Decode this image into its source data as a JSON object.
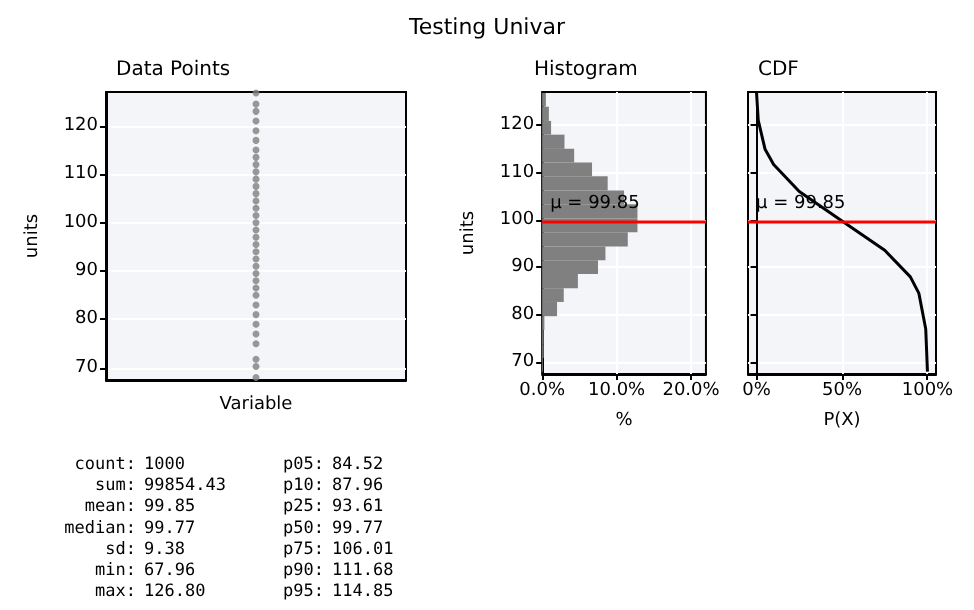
{
  "chart_data": [
    {
      "type": "other",
      "title": "Testing Univar"
    },
    {
      "type": "scatter",
      "title": "Data Points",
      "ylabel": "units",
      "categories": [
        "Variable"
      ],
      "ylim": [
        67.5,
        127
      ],
      "yticks": [
        70,
        80,
        90,
        100,
        110,
        120
      ],
      "grid": "y",
      "marker": "circle",
      "series": [
        {
          "color": "#808080",
          "x": [
            "Variable",
            "Variable",
            "Variable",
            "Variable",
            "Variable",
            "Variable",
            "Variable",
            "Variable",
            "Variable",
            "Variable",
            "Variable",
            "Variable",
            "Variable",
            "Variable",
            "Variable",
            "Variable",
            "Variable",
            "Variable",
            "Variable",
            "Variable",
            "Variable",
            "Variable",
            "Variable",
            "Variable",
            "Variable",
            "Variable",
            "Variable",
            "Variable",
            "Variable",
            "Variable",
            "Variable",
            "Variable",
            "Variable",
            "Variable",
            "Variable"
          ],
          "values": [
            68.0,
            70.3,
            71.8,
            75.0,
            77.0,
            79.0,
            81.0,
            83.0,
            85.0,
            86.5,
            88.0,
            89.5,
            91.0,
            92.5,
            94.0,
            95.5,
            97.0,
            98.5,
            100.0,
            101.5,
            103.0,
            104.5,
            106.0,
            107.5,
            109.0,
            110.5,
            112.0,
            113.5,
            115.0,
            117.0,
            119.0,
            121.0,
            123.0,
            124.5,
            126.8
          ]
        }
      ]
    },
    {
      "type": "histogram",
      "title": "Histogram",
      "ylabel": "units",
      "xlabel": "%",
      "orientation": "horizontal",
      "color": "#808080",
      "bins": [
        68.0,
        70.9,
        73.8,
        76.8,
        79.7,
        82.7,
        85.6,
        88.6,
        91.5,
        94.4,
        97.4,
        100.3,
        103.3,
        106.2,
        109.2,
        112.1,
        115.0,
        118.0,
        120.9,
        123.9,
        126.8
      ],
      "values": [
        0.1,
        0.2,
        0.2,
        0.3,
        2.0,
        2.9,
        4.8,
        7.5,
        8.5,
        11.5,
        12.8,
        12.8,
        11.0,
        8.8,
        6.7,
        4.3,
        3.0,
        1.2,
        0.9,
        0.5
      ],
      "xlim": [
        0,
        22
      ],
      "xticks": [
        {
          "value": 0,
          "label": "0.0%"
        },
        {
          "value": 10,
          "label": "10.0%"
        },
        {
          "value": 20,
          "label": "20.0%"
        }
      ],
      "ylim": [
        67.5,
        127
      ],
      "yticks": [
        70,
        80,
        90,
        100,
        110,
        120
      ],
      "grid": true,
      "ref_lines": [
        {
          "axis": "y",
          "value": 99.85,
          "label": "μ = 99.85",
          "color": "#ff0000"
        }
      ]
    },
    {
      "type": "line",
      "title": "CDF",
      "xlabel": "P(X)",
      "marker": "none",
      "tick_labels": "x",
      "series": [
        {
          "color": "#000000",
          "x": [
            0,
            1,
            5,
            10,
            25,
            50,
            75,
            90,
            95,
            99,
            100
          ],
          "values": [
            126.8,
            121,
            114.9,
            111.7,
            106.0,
            99.8,
            93.6,
            88.0,
            84.5,
            77,
            68.0
          ]
        }
      ],
      "xlim": [
        -5,
        105
      ],
      "xticks": [
        {
          "value": 0,
          "label": "0%"
        },
        {
          "value": 50,
          "label": "50%"
        },
        {
          "value": 100,
          "label": "100%"
        }
      ],
      "ylim": [
        67.5,
        127
      ],
      "yticks": [
        70,
        80,
        90,
        100,
        110,
        120
      ],
      "grid": true,
      "ref_lines": [
        {
          "axis": "y",
          "value": 99.85,
          "label": "μ = 99.85",
          "color": "#ff0000"
        }
      ]
    },
    {
      "type": "other",
      "annotations": [
        "count: 1000",
        "sum: 99854.43",
        "mean: 99.85",
        "median: 99.77",
        "sd: 9.38",
        "min: 67.96",
        "max: 126.80",
        "p05: 84.52",
        "p10: 87.96",
        "p25: 93.61",
        "p50: 99.77",
        "p75: 106.01",
        "p90: 111.68",
        "p95: 114.85"
      ]
    }
  ]
}
